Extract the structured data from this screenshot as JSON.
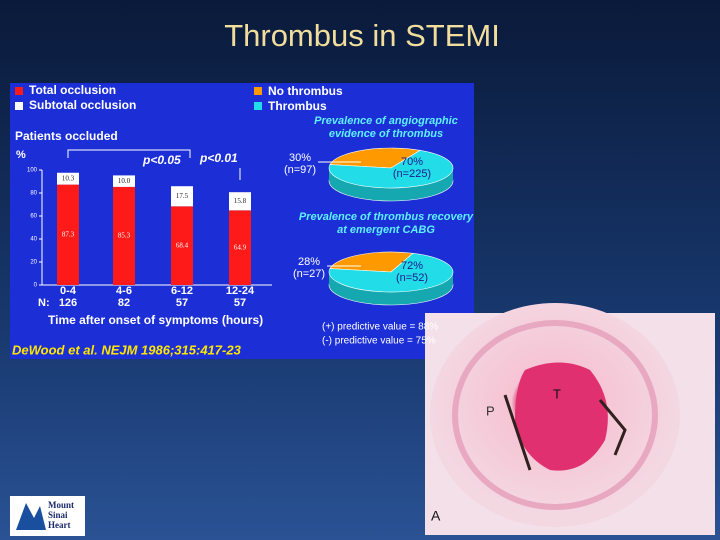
{
  "title": "Thrombus in STEMI",
  "chart_data": [
    {
      "type": "bar",
      "stacked": true,
      "title": "Patients occluded",
      "ylabel": "%",
      "xlabel": "Time after onset of symptoms (hours)",
      "categories": [
        "0-4",
        "4-6",
        "6-12",
        "12-24"
      ],
      "n_label": "N:",
      "n": [
        126,
        82,
        57,
        57
      ],
      "series": [
        {
          "name": "Total occlusion",
          "color": "#ff1a1a",
          "values": [
            87.3,
            85.3,
            68.4,
            64.9
          ]
        },
        {
          "name": "Subtotal occlusion",
          "color": "#ffffff",
          "values": [
            10.3,
            10.0,
            17.5,
            15.8
          ],
          "value_labels": [
            "10.3",
            "10.0",
            "17.5",
            "15.8"
          ]
        }
      ],
      "ylim": [
        0,
        100
      ],
      "yticks": [
        0,
        20,
        40,
        60,
        80,
        100
      ],
      "annotations": [
        "p<0.05",
        "p<0.01"
      ]
    },
    {
      "type": "pie",
      "title": "Prevalence of angiographic evidence of thrombus",
      "categories": [
        "No thrombus",
        "Thrombus"
      ],
      "colors": [
        "#ff9900",
        "#22dde8"
      ],
      "values": [
        30,
        70
      ],
      "value_labels": [
        "30%",
        "70%"
      ],
      "n_labels": [
        "(n=97)",
        "(n=225)"
      ]
    },
    {
      "type": "pie",
      "title": "Prevalence of thrombus recovery at emergent CABG",
      "categories": [
        "No thrombus",
        "Thrombus"
      ],
      "colors": [
        "#ff9900",
        "#22dde8"
      ],
      "values": [
        28,
        72
      ],
      "value_labels": [
        "28%",
        "72%"
      ],
      "n_labels": [
        "(n=27)",
        "(n=52)"
      ]
    }
  ],
  "predictive_values": [
    "(+) predictive value = 88%",
    "(-) predictive value = 75%"
  ],
  "citation": "DeWood et al. NEJM 1986;315:417-23",
  "histology_labels": [
    "T",
    "P",
    "A"
  ],
  "logo": "Mount Sinai Heart"
}
